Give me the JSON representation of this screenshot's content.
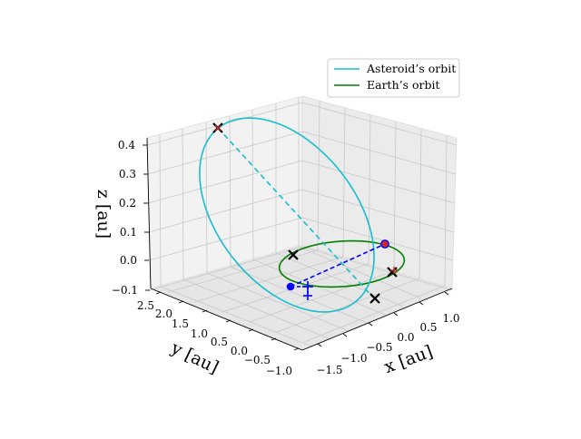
{
  "chart_data": {
    "type": "line",
    "projection": "3d",
    "colors": {
      "asteroid": "#17becf",
      "earth": "#008000",
      "black_marker": "#000000",
      "red": "#d62728",
      "blue": "#0000ff"
    },
    "axes": {
      "x": {
        "label": "x [au]",
        "ticks": [
          "−1.5",
          "−1.0",
          "−0.5",
          "0.0",
          "0.5",
          "1.0"
        ]
      },
      "y": {
        "label": "y [au]",
        "ticks": [
          "−1.0",
          "−0.5",
          "0.0",
          "0.5",
          "1.0",
          "1.5",
          "2.0",
          "2.5"
        ]
      },
      "z": {
        "label": "z [au]",
        "ticks": [
          "−0.1",
          "0.0",
          "0.1",
          "0.2",
          "0.3",
          "0.4"
        ]
      }
    },
    "grid": true,
    "legend": {
      "position": "top-right",
      "entries": [
        "Asteroid’s orbit",
        "Earth’s orbit"
      ]
    },
    "series": [
      {
        "name": "Asteroid’s orbit",
        "style": "solid"
      },
      {
        "name": "Earth’s orbit",
        "style": "solid"
      }
    ]
  }
}
